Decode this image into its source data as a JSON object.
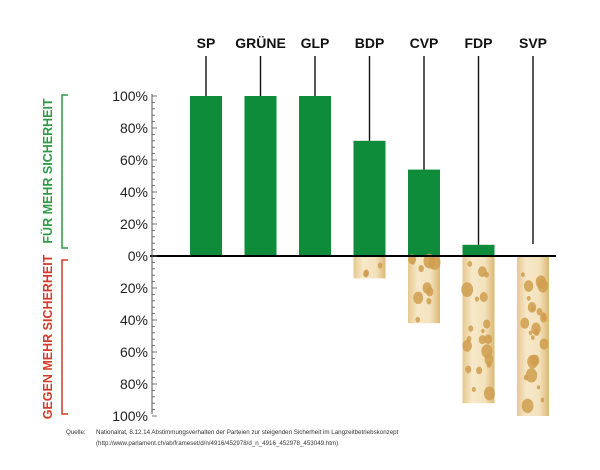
{
  "colors": {
    "positive_bar": "#0f8c3a",
    "for_label": "#2e9a45",
    "against_label": "#d43a2a",
    "cheese_base": "#f4e4c2",
    "cheese_shadow": "#e3c58d",
    "cheese_hole": "#cf9d4d"
  },
  "chart_data": {
    "type": "bar",
    "categories": [
      "SP",
      "GRÜNE",
      "GLP",
      "BDP",
      "CVP",
      "FDP",
      "SVP"
    ],
    "series": [
      {
        "name": "",
        "values": [
          100,
          100,
          100,
          72,
          54,
          7,
          0
        ]
      },
      {
        "name": "",
        "values": [
          0,
          0,
          0,
          14,
          42,
          92,
          100
        ]
      }
    ],
    "yticks_top": [
      "100%",
      "80%",
      "60%",
      "40%",
      "20%",
      "0%"
    ],
    "yticks_bottom": [
      "20%",
      "40%",
      "60%",
      "80%",
      "100%"
    ],
    "ylim": [
      -100,
      100
    ],
    "label_for": "FÜR MEHR SICHERHEIT",
    "label_against": "GEGEN MEHR SICHERHEIT",
    "grid": false
  },
  "source": {
    "label": "Quelle:",
    "line1": "Nationalrat, 8.12.14 Abstimmungsverhalten der Parteien zur steigenden Sicherheit im Langzeitbetriebskonzept",
    "line2": "(http://www.parlament.ch/ab/frameset/d/n/4916/452978/d_n_4916_452978_453049.htm)"
  }
}
